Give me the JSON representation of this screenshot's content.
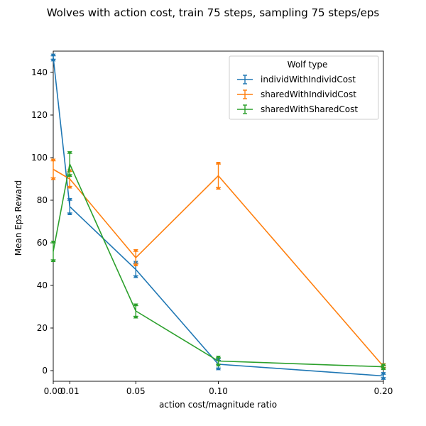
{
  "chart_data": {
    "type": "line",
    "title": "Wolves with action cost, train 75 steps, sampling 75 steps/eps",
    "xlabel": "action cost/magnitude ratio",
    "ylabel": "Mean Eps Reward",
    "xlim": [
      0,
      0.2
    ],
    "ylim": [
      -5,
      150
    ],
    "x_ticks": [
      0,
      0.01,
      0.05,
      0.1,
      0.2
    ],
    "x_tick_labels": [
      "0.00",
      "0.01",
      "0.05",
      "0.10",
      "0.20"
    ],
    "y_ticks": [
      0,
      20,
      40,
      60,
      80,
      100,
      120,
      140
    ],
    "y_tick_labels": [
      "0",
      "20",
      "40",
      "60",
      "80",
      "100",
      "120",
      "140"
    ],
    "grid": false,
    "legend": {
      "title": "Wolf type",
      "position": "top-right"
    },
    "x": [
      0,
      0.01,
      0.05,
      0.1,
      0.2
    ],
    "series": [
      {
        "name": "individWithIndividCost",
        "color": "#1f77b4",
        "values": [
          147,
          77,
          47.5,
          3,
          -2.5
        ],
        "err": [
          0.8,
          3,
          3,
          1.8,
          0.8
        ]
      },
      {
        "name": "sharedWithIndividCost",
        "color": "#ff7f0e",
        "values": [
          94.5,
          90,
          53,
          91.5,
          2
        ],
        "err": [
          4,
          3.5,
          3,
          5.5,
          0.5
        ]
      },
      {
        "name": "sharedWithSharedCost",
        "color": "#2ca02c",
        "values": [
          56,
          97,
          28,
          4.5,
          1.8
        ],
        "err": [
          4,
          5,
          2.5,
          1.5,
          0.5
        ]
      }
    ]
  }
}
